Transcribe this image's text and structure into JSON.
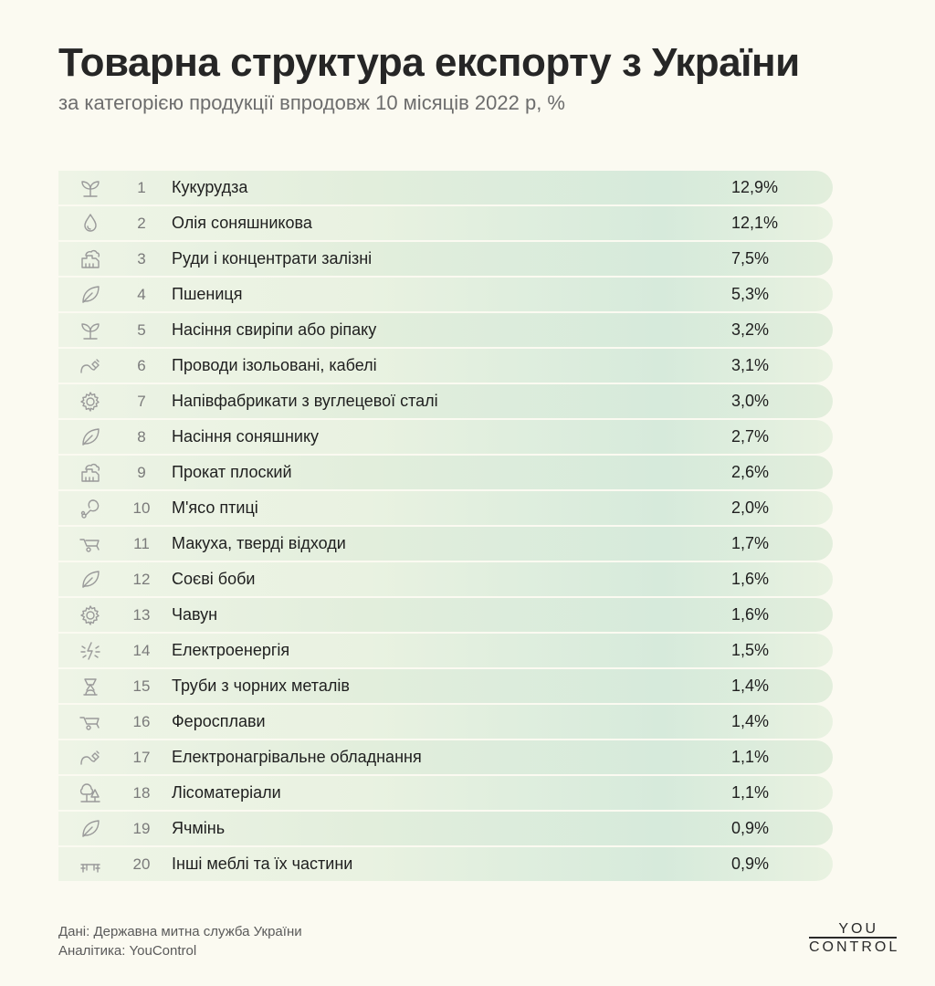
{
  "header": {
    "title": "Товарна структура експорту з України",
    "subtitle": "за категорією продукції впродовж 10 місяців 2022 р, %"
  },
  "colors": {
    "background": "#fbfaf1",
    "row_base": "#eef4e6",
    "row_odd": "#e2eedc",
    "row_even": "#e9f2e1",
    "row_glow": "#d6eadb",
    "icon": "#9a9a9a"
  },
  "chart_data": {
    "type": "table",
    "columns": [
      "icon",
      "rank",
      "category",
      "share"
    ],
    "rows": [
      {
        "rank": "1",
        "name": "Кукурудза",
        "value_label": "12,9%",
        "value": 12.9,
        "icon": "sprout-icon"
      },
      {
        "rank": "2",
        "name": "Олія соняшникова",
        "value_label": "12,1%",
        "value": 12.1,
        "icon": "drop-icon"
      },
      {
        "rank": "3",
        "name": "Руди і концентрати залізні",
        "value_label": "7,5%",
        "value": 7.5,
        "icon": "factory-icon"
      },
      {
        "rank": "4",
        "name": "Пшениця",
        "value_label": "5,3%",
        "value": 5.3,
        "icon": "leaf-icon"
      },
      {
        "rank": "5",
        "name": "Насіння свиріпи або ріпаку",
        "value_label": "3,2%",
        "value": 3.2,
        "icon": "sprout-icon"
      },
      {
        "rank": "6",
        "name": "Проводи ізольовані, кабелі",
        "value_label": "3,1%",
        "value": 3.1,
        "icon": "cable-icon"
      },
      {
        "rank": "7",
        "name": "Напівфабрикати з вуглецевої сталі",
        "value_label": "3,0%",
        "value": 3.0,
        "icon": "gear-icon"
      },
      {
        "rank": "8",
        "name": "Насіння соняшнику",
        "value_label": "2,7%",
        "value": 2.7,
        "icon": "leaf-icon"
      },
      {
        "rank": "9",
        "name": "Прокат плоский",
        "value_label": "2,6%",
        "value": 2.6,
        "icon": "factory-icon"
      },
      {
        "rank": "10",
        "name": "М'ясо птиці",
        "value_label": "2,0%",
        "value": 2.0,
        "icon": "drumstick-icon"
      },
      {
        "rank": "11",
        "name": "Макуха, тверді відходи",
        "value_label": "1,7%",
        "value": 1.7,
        "icon": "wheelbarrow-icon"
      },
      {
        "rank": "12",
        "name": "Соєві боби",
        "value_label": "1,6%",
        "value": 1.6,
        "icon": "leaf-icon"
      },
      {
        "rank": "13",
        "name": "Чавун",
        "value_label": "1,6%",
        "value": 1.6,
        "icon": "gear-icon"
      },
      {
        "rank": "14",
        "name": "Електроенергія",
        "value_label": "1,5%",
        "value": 1.5,
        "icon": "spark-icon"
      },
      {
        "rank": "15",
        "name": "Труби з чорних металів",
        "value_label": "1,4%",
        "value": 1.4,
        "icon": "anvil-icon"
      },
      {
        "rank": "16",
        "name": "Феросплави",
        "value_label": "1,4%",
        "value": 1.4,
        "icon": "wheelbarrow-icon"
      },
      {
        "rank": "17",
        "name": "Електронагрівальне обладнання",
        "value_label": "1,1%",
        "value": 1.1,
        "icon": "cable-icon"
      },
      {
        "rank": "18",
        "name": "Лісоматеріали",
        "value_label": "1,1%",
        "value": 1.1,
        "icon": "trees-icon"
      },
      {
        "rank": "19",
        "name": "Ячмінь",
        "value_label": "0,9%",
        "value": 0.9,
        "icon": "leaf-icon"
      },
      {
        "rank": "20",
        "name": "Інші меблі та їх частини",
        "value_label": "0,9%",
        "value": 0.9,
        "icon": "furniture-icon"
      }
    ]
  },
  "footer": {
    "source": "Дані: Державна митна служба України",
    "analytics": "Аналітика: YouControl"
  },
  "logo": {
    "top": "YOU",
    "bottom": "CONTROL"
  }
}
